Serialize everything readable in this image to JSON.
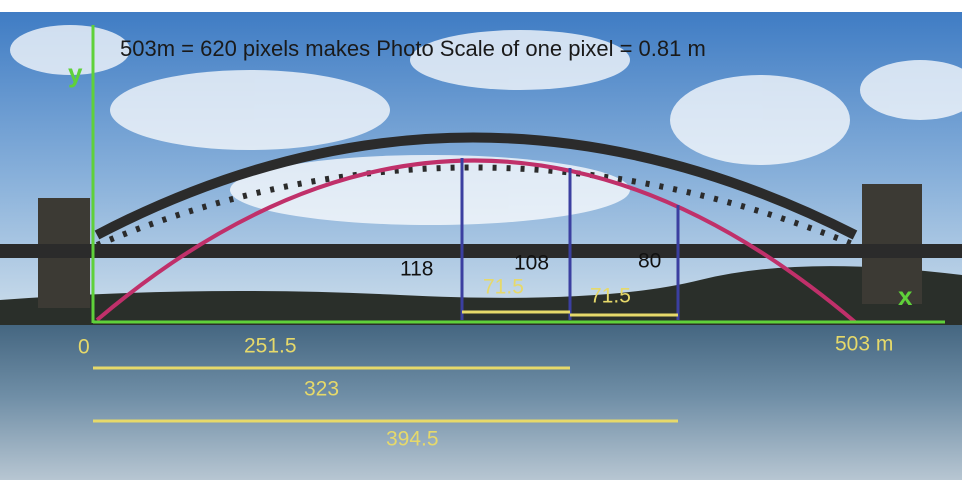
{
  "caption": "503m = 620 pixels makes Photo Scale of one pixel = 0.81 m",
  "axes": {
    "y": "y",
    "x": "x",
    "origin": "0",
    "end": "503 m"
  },
  "spans": {
    "half": "251.5",
    "second": "323",
    "third": "394.5"
  },
  "heights": {
    "center": "118",
    "second": "108",
    "third": "80"
  },
  "steps": {
    "first": "71.5",
    "second": "71.5"
  }
}
